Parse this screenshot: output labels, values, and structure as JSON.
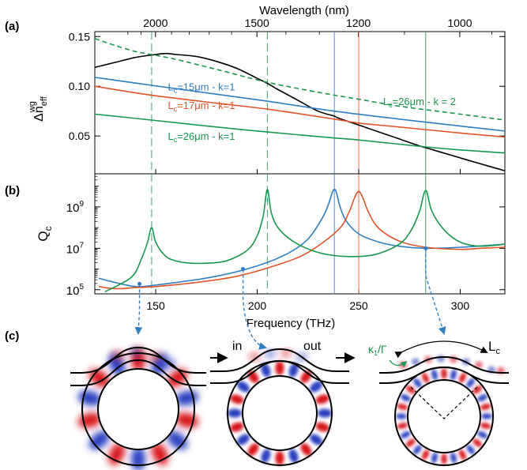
{
  "panel_labels": {
    "a": "(a)",
    "b": "(b)",
    "c": "(c)"
  },
  "chart_data": [
    {
      "type": "line",
      "panel": "(a)",
      "xlabel_top": "Wavelength (nm)",
      "top_ticks": [
        {
          "value": 2000,
          "label": "2000"
        },
        {
          "value": 1500,
          "label": "1500"
        },
        {
          "value": 1200,
          "label": "1200"
        },
        {
          "value": 1000,
          "label": "1000"
        }
      ],
      "ylabel": "Δn_eff^wg",
      "ylabel_parts": {
        "base": "Δn",
        "sub": "eff",
        "sup": "wg"
      },
      "xlim": [
        120,
        322
      ],
      "ylim": [
        0.012,
        0.155
      ],
      "yticks": [
        {
          "value": 0.05,
          "label": "0.05"
        },
        {
          "value": 0.1,
          "label": "0.10"
        },
        {
          "value": 0.15,
          "label": "0.15"
        }
      ],
      "series": [
        {
          "key": "black",
          "color": "#000000",
          "dash": "",
          "x": [
            120,
            130,
            140,
            150,
            155,
            160,
            170,
            180,
            190,
            200,
            205,
            210,
            220,
            230,
            238,
            240,
            250,
            260,
            270,
            280,
            285,
            290,
            300,
            310,
            322
          ],
          "y": [
            0.119,
            0.124,
            0.129,
            0.132,
            0.133,
            0.132,
            0.13,
            0.125,
            0.118,
            0.108,
            0.103,
            0.097,
            0.086,
            0.075,
            0.07,
            0.068,
            0.061,
            0.054,
            0.047,
            0.04,
            0.037,
            0.034,
            0.028,
            0.022,
            0.015
          ]
        },
        {
          "key": "green_dash",
          "color": "#1a9850",
          "dash": "6,4",
          "x": [
            120,
            130,
            140,
            148,
            160,
            180,
            205,
            230,
            250,
            270,
            300,
            322
          ],
          "y": [
            0.148,
            0.141,
            0.135,
            0.132,
            0.127,
            0.117,
            0.104,
            0.094,
            0.087,
            0.08,
            0.072,
            0.066
          ]
        },
        {
          "key": "blue",
          "color": "#2f7ec1",
          "dash": "",
          "x": [
            120,
            148,
            180,
            205,
            238,
            270,
            300,
            322
          ],
          "y": [
            0.109,
            0.101,
            0.092,
            0.085,
            0.075,
            0.067,
            0.06,
            0.055
          ]
        },
        {
          "key": "orange",
          "color": "#e2552b",
          "dash": "",
          "x": [
            120,
            148,
            180,
            205,
            238,
            250,
            270,
            300,
            322
          ],
          "y": [
            0.1,
            0.091,
            0.083,
            0.077,
            0.067,
            0.063,
            0.059,
            0.053,
            0.049
          ]
        },
        {
          "key": "green",
          "color": "#1a9850",
          "dash": "",
          "x": [
            120,
            148,
            180,
            205,
            238,
            250,
            283,
            300,
            322
          ],
          "y": [
            0.072,
            0.066,
            0.059,
            0.054,
            0.048,
            0.046,
            0.039,
            0.036,
            0.033
          ]
        }
      ],
      "annotations": [
        {
          "base": "L",
          "sub": "c",
          "rest": "=15μm - k=1",
          "color": "#2f7ec1",
          "x": 156,
          "y": 0.096
        },
        {
          "base": "L",
          "sub": "c",
          "rest": "=17μm - k=1",
          "color": "#e2552b",
          "x": 156,
          "y": 0.077
        },
        {
          "base": "L",
          "sub": "c",
          "rest": "=26μm - k=1",
          "color": "#1a9850",
          "x": 156,
          "y": 0.046
        },
        {
          "base": "L",
          "sub": "c",
          "rest": "=26μm - k = 2",
          "color": "#1a9850",
          "x": 262,
          "y": 0.081
        }
      ],
      "vlines": [
        {
          "x": 148,
          "color": "#1a9850",
          "dash": "10,5"
        },
        {
          "x": 205,
          "color": "#1a9850",
          "dash": "10,5"
        },
        {
          "x": 238,
          "color": "#2f7ec1",
          "dash": ""
        },
        {
          "x": 250,
          "color": "#e2552b",
          "dash": ""
        },
        {
          "x": 283,
          "color": "#1a9850",
          "dash": ""
        }
      ]
    },
    {
      "type": "line",
      "panel": "(b)",
      "xlabel": "Frequency (THz)",
      "ylabel": "Q_c",
      "ylabel_parts": {
        "base": "Q",
        "sub": "c"
      },
      "yscale": "log",
      "xlim": [
        120,
        322
      ],
      "ylim_log10": [
        4.8,
        10.6
      ],
      "xticks": [
        {
          "value": 150,
          "label": "150"
        },
        {
          "value": 200,
          "label": "200"
        },
        {
          "value": 250,
          "label": "250"
        },
        {
          "value": 300,
          "label": "300"
        }
      ],
      "yticks": [
        {
          "exp": 5,
          "label": "10",
          "sup": "5"
        },
        {
          "exp": 7,
          "label": "10",
          "sup": "7"
        },
        {
          "exp": 9,
          "label": "10",
          "sup": "9"
        }
      ],
      "series": [
        {
          "key": "blue",
          "color": "#2f7ec1",
          "x": [
            122,
            130,
            140,
            148,
            160,
            180,
            200,
            215,
            225,
            232,
            235,
            237,
            238,
            239,
            241,
            244,
            250,
            260,
            270,
            283,
            300,
            322
          ],
          "y_log10": [
            5.55,
            5.35,
            5.15,
            5.2,
            5.35,
            5.65,
            6.15,
            6.75,
            7.45,
            8.45,
            9.1,
            9.7,
            9.85,
            9.7,
            8.95,
            8.3,
            7.7,
            7.3,
            7.1,
            7.0,
            7.05,
            7.2
          ]
        },
        {
          "key": "orange",
          "color": "#e2552b",
          "x": [
            122,
            130,
            140,
            150,
            170,
            190,
            210,
            225,
            240,
            245,
            248,
            250,
            252,
            255,
            260,
            270,
            283,
            300,
            310,
            322
          ],
          "y_log10": [
            5.15,
            5.05,
            5.1,
            5.15,
            5.35,
            5.65,
            6.2,
            6.8,
            7.9,
            8.7,
            9.45,
            9.75,
            9.45,
            8.7,
            7.95,
            7.35,
            7.05,
            6.95,
            7.0,
            7.05
          ]
        },
        {
          "key": "green",
          "color": "#1a9850",
          "x": [
            125,
            138,
            143,
            146,
            148,
            150,
            154,
            158,
            165,
            175,
            185,
            195,
            200,
            203,
            205,
            207,
            211,
            220,
            232,
            245,
            258,
            270,
            276,
            280,
            283,
            286,
            292,
            300,
            310,
            322
          ],
          "y_log10": [
            4.9,
            5.6,
            6.5,
            7.3,
            8.0,
            7.3,
            6.7,
            6.45,
            6.3,
            6.28,
            6.4,
            6.9,
            7.6,
            8.6,
            9.85,
            8.7,
            7.9,
            7.2,
            6.75,
            6.6,
            6.7,
            7.2,
            7.9,
            8.8,
            9.8,
            8.8,
            7.9,
            7.3,
            7.1,
            7.2
          ]
        }
      ],
      "markers": [
        {
          "x": 142,
          "y_log10": 5.28,
          "color": "#2f7ec1"
        },
        {
          "x": 193,
          "y_log10": 6.0,
          "color": "#2f7ec1"
        },
        {
          "x": 283,
          "y_log10": 7.0,
          "color": "#2f7ec1"
        }
      ],
      "dashed_arrows_to_c": [
        {
          "x": 142,
          "y_log10": 5.28,
          "target": "left"
        },
        {
          "x": 193,
          "y_log10": 6.0,
          "target": "middle"
        },
        {
          "x": 283,
          "y_log10": 7.0,
          "target": "right"
        }
      ]
    }
  ],
  "panel_c": {
    "in_label": "in",
    "out_label": "out",
    "coupling_label": "κ1/Γ",
    "coupling_parts": {
      "base": "κ",
      "sub": "1",
      "rest": "/Γ"
    },
    "length_label": "Lc",
    "length_parts": {
      "base": "L",
      "sub": "c"
    },
    "field_colors": {
      "positive": "#d7191c",
      "negative": "#2b3fbf"
    }
  }
}
